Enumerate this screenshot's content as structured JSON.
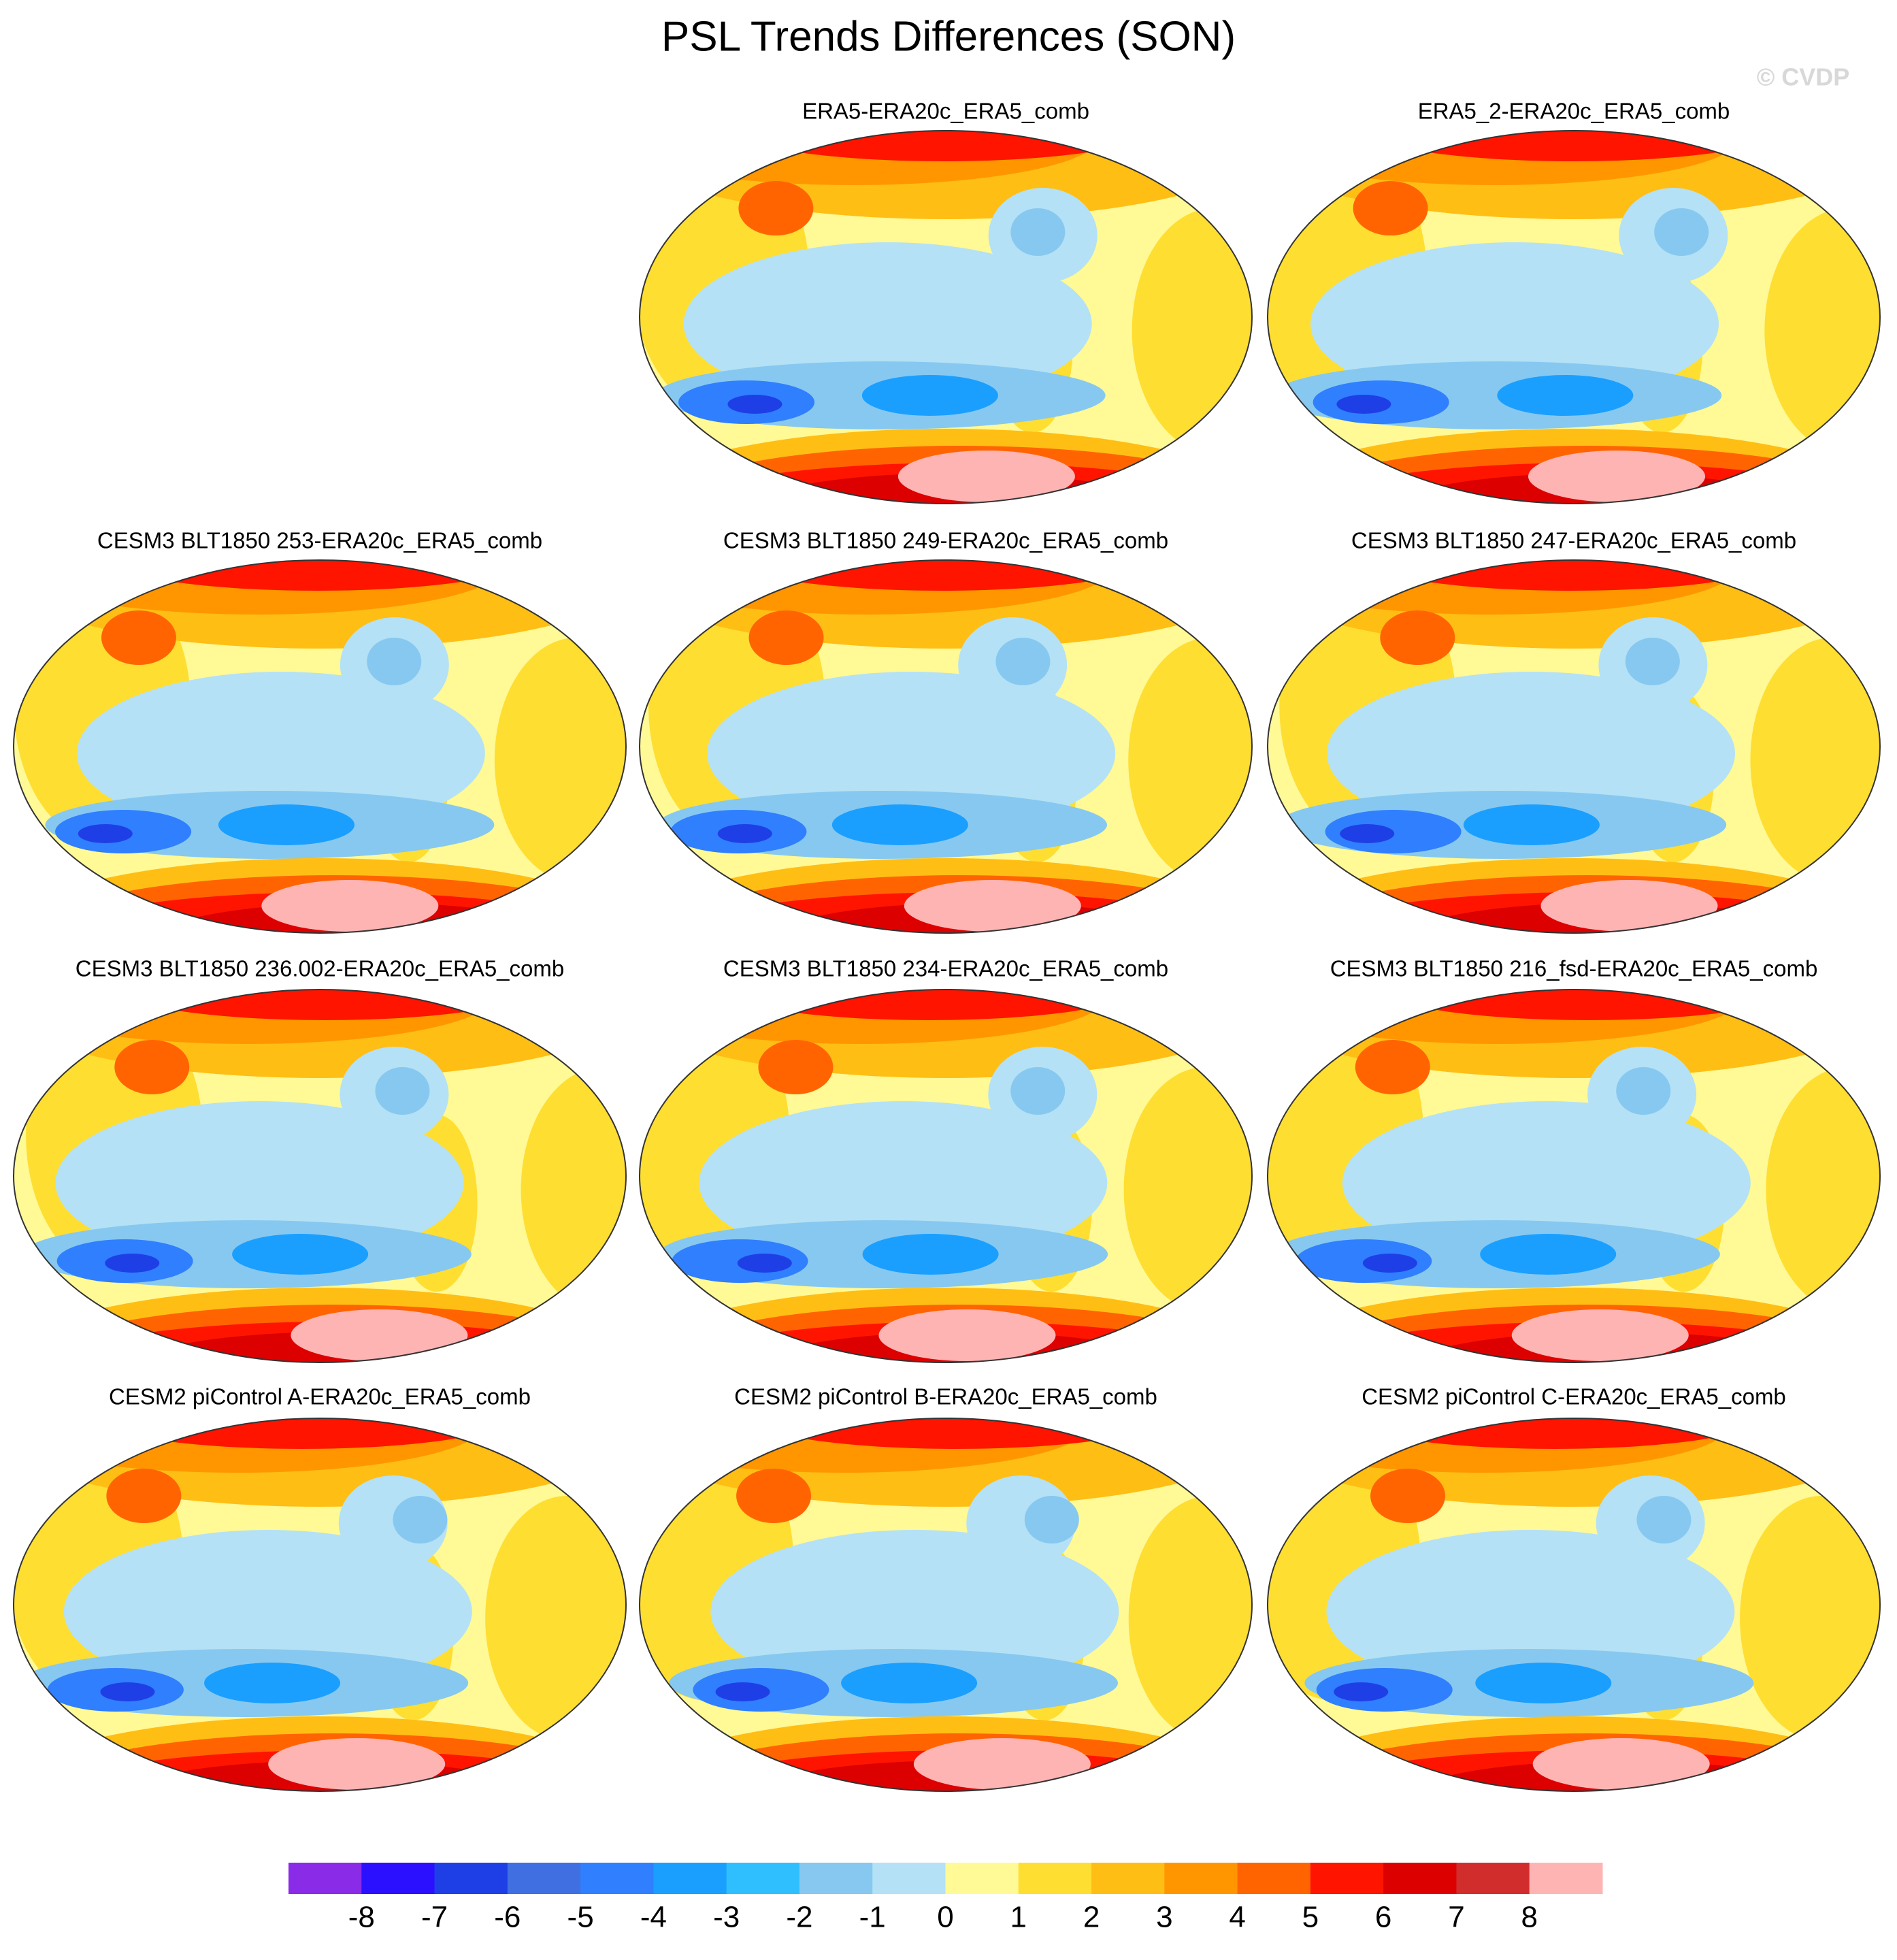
{
  "title": "PSL Trends Differences (SON)",
  "watermark": "© CVDP",
  "panels": [
    [
      "ERA5-ERA20c_ERA5_comb",
      "ERA5_2-ERA20c_ERA5_comb"
    ],
    [
      "CESM3 BLT1850 253-ERA20c_ERA5_comb",
      "CESM3 BLT1850 249-ERA20c_ERA5_comb",
      "CESM3 BLT1850 247-ERA20c_ERA5_comb"
    ],
    [
      "CESM3 BLT1850 236.002-ERA20c_ERA5_comb",
      "CESM3 BLT1850 234-ERA20c_ERA5_comb",
      "CESM3 BLT1850 216_fsd-ERA20c_ERA5_comb"
    ],
    [
      "CESM2 piControl A-ERA20c_ERA5_comb",
      "CESM2 piControl B-ERA20c_ERA5_comb",
      "CESM2 piControl C-ERA20c_ERA5_comb"
    ]
  ],
  "colorbar": {
    "levels": [
      -8,
      -7,
      -6,
      -5,
      -4,
      -3,
      -2,
      -1,
      0,
      1,
      2,
      3,
      4,
      5,
      6,
      7,
      8
    ],
    "colors": [
      "#8a2be8",
      "#2b10ff",
      "#1f3fe6",
      "#3f6fe0",
      "#2f7fff",
      "#1a9fff",
      "#2fbfff",
      "#87c8f0",
      "#b4e1f5",
      "#fff996",
      "#ffde32",
      "#ffbe14",
      "#ff9600",
      "#ff6400",
      "#ff1400",
      "#dc0000",
      "#d22d2d",
      "#ffb4b4"
    ]
  }
}
